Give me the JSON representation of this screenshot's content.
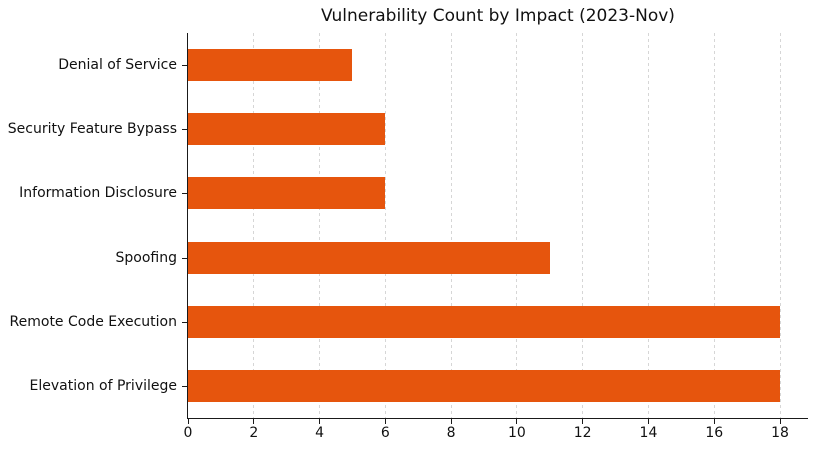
{
  "chart_data": {
    "type": "bar",
    "orientation": "horizontal",
    "title": "Vulnerability Count by Impact (2023-Nov)",
    "categories": [
      "Denial of Service",
      "Security Feature Bypass",
      "Information Disclosure",
      "Spoofing",
      "Remote Code Execution",
      "Elevation of Privilege"
    ],
    "values": [
      5,
      6,
      6,
      11,
      18,
      18
    ],
    "xlabel": "",
    "ylabel": "",
    "xlim": [
      0,
      18.85
    ],
    "xticks": [
      0,
      2,
      4,
      6,
      8,
      10,
      12,
      14,
      16,
      18
    ],
    "grid": "vertical-dashed",
    "legend": "none",
    "bar_color": "#e6550d",
    "gridline_color": "#d6d6d6",
    "axis_color": "#1a1a1a",
    "background_color": "#ffffff"
  }
}
